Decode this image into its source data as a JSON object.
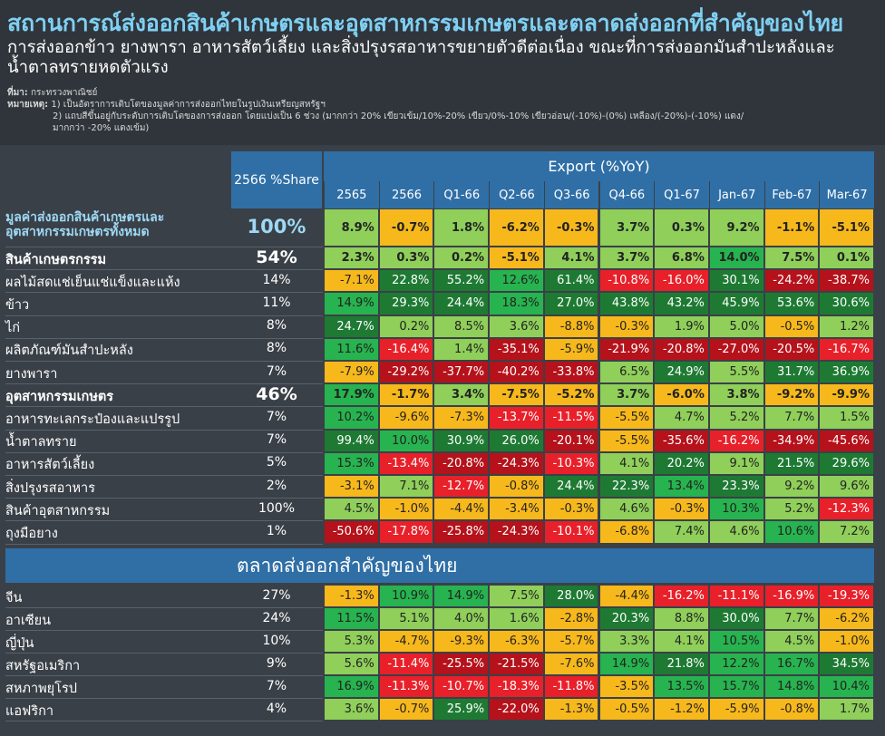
{
  "title": "สถานการณ์ส่งออกสินค้าเกษตรและอุตสาหกรรมเกษตรและตลาดส่งออกที่สำคัญของไทย",
  "subtitle": "การส่งออกข้าว ยางพารา อาหารสัตว์เลี้ยง และสิ่งปรุงรสอาหารขยายตัวดีต่อเนื่อง ขณะที่การส่งออกมันสำปะหลังและน้ำตาลทรายหดตัวแรง",
  "source_label": "ที่มา:",
  "source": "กระทรวงพาณิชย์",
  "note_label": "หมายเหตุ:",
  "note1": "1) เป็นอัตราการเติบโตของมูลค่าการส่งออกไทยในรูปเงินเหรียญสหรัฐฯ",
  "note2": "2) แถบสีขึ้นอยู่กับระดับการเติบโตของการส่งออก โดยแบ่งเป็น 6 ช่วง (มากกว่า 20% เขียวเข้ม/10%-20% เขียว/0%-10% เขียวอ่อน/(-10%)-(0%) เหลือง/(-20%)-(-10%) แดง/",
  "note2b": "มากกว่า -20% แดงเข้ม)",
  "header": {
    "share": "2566 %Share",
    "export": "Export (%YoY)",
    "section2": "ตลาดส่งออกสำคัญของไทย"
  },
  "colors": {
    "dark_green": "#1e7a33",
    "green": "#27b34f",
    "light_green": "#8fcf5a",
    "yellow": "#f7b81c",
    "red": "#e8202a",
    "dark_red": "#b5121b",
    "header_blue": "#2f6fa6",
    "title_blue": "#7fd0f3"
  },
  "chart_data": {
    "type": "table",
    "columns": [
      "2565",
      "2566",
      "Q1-66",
      "Q2-66",
      "Q3-66",
      "Q4-66",
      "Q1-67",
      "Jan-67",
      "Feb-67",
      "Mar-67"
    ],
    "rows": [
      {
        "label": "มูลค่าส่งออกสินค้าเกษตรและอุตสาหกรรมเกษตรทั้งหมด",
        "share": "100%",
        "values": [
          8.9,
          -0.7,
          1.8,
          -6.2,
          -0.3,
          3.7,
          0.3,
          9.2,
          -1.1,
          -5.1
        ]
      },
      {
        "label": "สินค้าเกษตรกรรม",
        "share": "54%",
        "values": [
          2.3,
          0.3,
          0.2,
          -5.1,
          4.1,
          3.7,
          6.8,
          14.0,
          7.5,
          0.1
        ]
      },
      {
        "label": "ผลไม้สดแช่เย็นแช่แข็งและแห้ง",
        "share": "14%",
        "values": [
          -7.1,
          22.8,
          55.2,
          12.6,
          61.4,
          -10.8,
          -16.0,
          30.1,
          -24.2,
          -38.7
        ]
      },
      {
        "label": "ข้าว",
        "share": "11%",
        "values": [
          14.9,
          29.3,
          24.4,
          18.3,
          27.0,
          43.8,
          43.2,
          45.9,
          53.6,
          30.6
        ]
      },
      {
        "label": "ไก่",
        "share": "8%",
        "values": [
          24.7,
          0.2,
          8.5,
          3.6,
          -8.8,
          -0.3,
          1.9,
          5.0,
          -0.5,
          1.2
        ]
      },
      {
        "label": "ผลิตภัณฑ์มันสำปะหลัง",
        "share": "8%",
        "values": [
          11.6,
          -16.4,
          1.4,
          -35.1,
          -5.9,
          -21.9,
          -20.8,
          -27.0,
          -20.5,
          -16.7
        ]
      },
      {
        "label": "ยางพารา",
        "share": "7%",
        "values": [
          -7.9,
          -29.2,
          -37.7,
          -40.2,
          -33.8,
          6.5,
          24.9,
          5.5,
          31.7,
          36.9
        ]
      },
      {
        "label": "อุตสาหกรรมเกษตร",
        "share": "46%",
        "values": [
          17.9,
          -1.7,
          3.4,
          -7.5,
          -5.2,
          3.7,
          -6.0,
          3.8,
          -9.2,
          -9.9
        ]
      },
      {
        "label": "อาหารทะเลกระป๋องและแปรรูป",
        "share": "7%",
        "values": [
          10.2,
          -9.6,
          -7.3,
          -13.7,
          -11.5,
          -5.5,
          4.7,
          5.2,
          7.7,
          1.5
        ]
      },
      {
        "label": "น้ำตาลทราย",
        "share": "7%",
        "values": [
          99.4,
          10.0,
          30.9,
          26.0,
          -20.1,
          -5.5,
          -35.6,
          -16.2,
          -34.9,
          -45.6
        ]
      },
      {
        "label": "อาหารสัตว์เลี้ยง",
        "share": "5%",
        "values": [
          15.3,
          -13.4,
          -20.8,
          -24.3,
          -10.3,
          4.1,
          20.2,
          9.1,
          21.5,
          29.6
        ]
      },
      {
        "label": "สิ่งปรุงรสอาหาร",
        "share": "2%",
        "values": [
          -3.1,
          7.1,
          -12.7,
          -0.8,
          24.4,
          22.3,
          13.4,
          23.3,
          9.2,
          9.6
        ]
      },
      {
        "label": "สินค้าอุตสาหกรรม",
        "share": "100%",
        "values": [
          4.5,
          -1.0,
          -4.4,
          -3.4,
          -0.3,
          4.6,
          -0.3,
          10.3,
          5.2,
          -12.3
        ]
      },
      {
        "label": "ถุงมือยาง",
        "share": "1%",
        "values": [
          -50.6,
          -17.8,
          -25.8,
          -24.3,
          -10.1,
          -6.8,
          7.4,
          4.6,
          10.6,
          7.2
        ]
      }
    ],
    "markets": [
      {
        "label": "จีน",
        "share": "27%",
        "values": [
          -1.3,
          10.9,
          14.9,
          7.5,
          28.0,
          -4.4,
          -16.2,
          -11.1,
          -16.9,
          -19.3
        ]
      },
      {
        "label": "อาเซียน",
        "share": "24%",
        "values": [
          11.5,
          5.1,
          4.0,
          1.6,
          -2.8,
          20.3,
          8.8,
          30.0,
          7.7,
          -6.2
        ]
      },
      {
        "label": "ญี่ปุ่น",
        "share": "10%",
        "values": [
          5.3,
          -4.7,
          -9.3,
          -6.3,
          -5.7,
          3.3,
          4.1,
          10.5,
          4.5,
          -1.0
        ]
      },
      {
        "label": "สหรัฐอเมริกา",
        "share": "9%",
        "values": [
          5.6,
          -11.4,
          -25.5,
          -21.5,
          -7.6,
          14.9,
          21.8,
          12.2,
          16.7,
          34.5
        ]
      },
      {
        "label": "สหภาพยุโรป",
        "share": "7%",
        "values": [
          16.9,
          -11.3,
          -10.7,
          -18.3,
          -11.8,
          -3.5,
          13.5,
          15.7,
          14.8,
          10.4
        ]
      },
      {
        "label": "แอฟริกา",
        "share": "4%",
        "values": [
          3.6,
          -0.7,
          25.9,
          -22.0,
          -1.3,
          -0.5,
          -1.2,
          -5.9,
          -0.8,
          1.7
        ]
      }
    ]
  }
}
